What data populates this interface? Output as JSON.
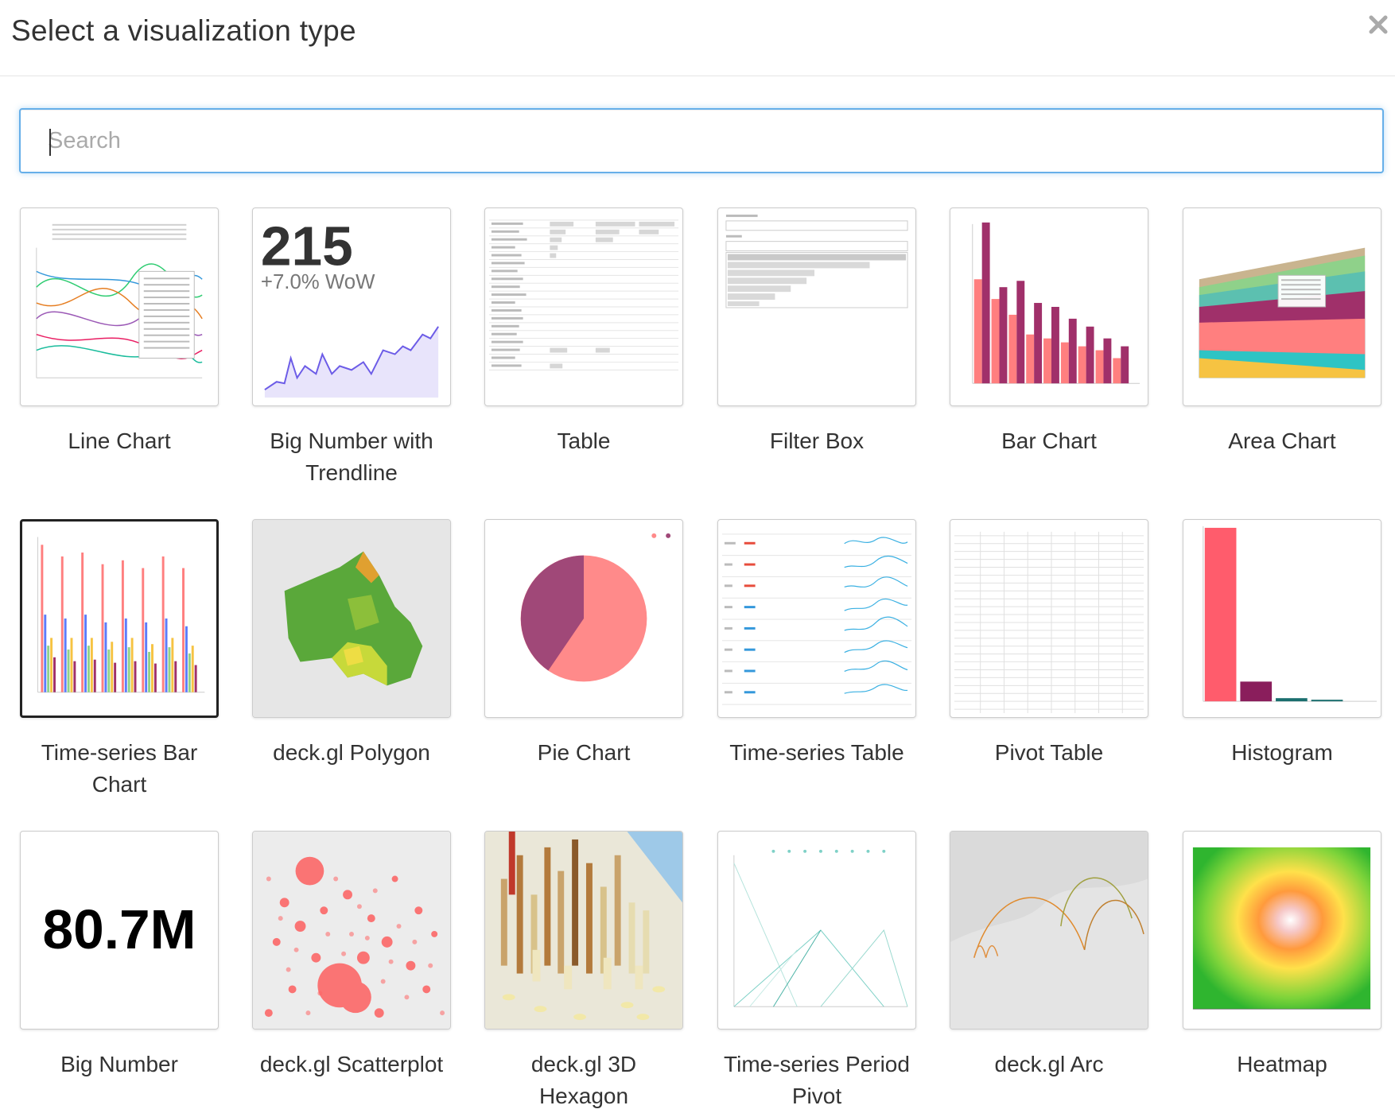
{
  "modal": {
    "title": "Select a visualization type",
    "close_label": "×"
  },
  "search": {
    "placeholder": "Search",
    "value": ""
  },
  "tiles": [
    {
      "label": "Line Chart"
    },
    {
      "label": "Big Number with Trendline",
      "number": "215",
      "subtext": "+7.0% WoW"
    },
    {
      "label": "Table"
    },
    {
      "label": "Filter Box"
    },
    {
      "label": "Bar Chart"
    },
    {
      "label": "Area Chart"
    },
    {
      "label": "Time-series Bar Chart"
    },
    {
      "label": "deck.gl Polygon"
    },
    {
      "label": "Pie Chart"
    },
    {
      "label": "Time-series Table"
    },
    {
      "label": "Pivot Table"
    },
    {
      "label": "Histogram"
    },
    {
      "label": "Big Number",
      "number": "80.7M"
    },
    {
      "label": "deck.gl Scatterplot"
    },
    {
      "label": "deck.gl 3D Hexagon"
    },
    {
      "label": "Time-series Period Pivot"
    },
    {
      "label": "deck.gl Arc"
    },
    {
      "label": "Heatmap"
    }
  ],
  "colors": {
    "focus_border": "#66afe9",
    "bar_primary": "#ff7f7f",
    "bar_secondary": "#a0306a",
    "pie_light": "#ff8a8a",
    "pie_dark": "#a04878",
    "trend_line": "#6c5ce7"
  }
}
